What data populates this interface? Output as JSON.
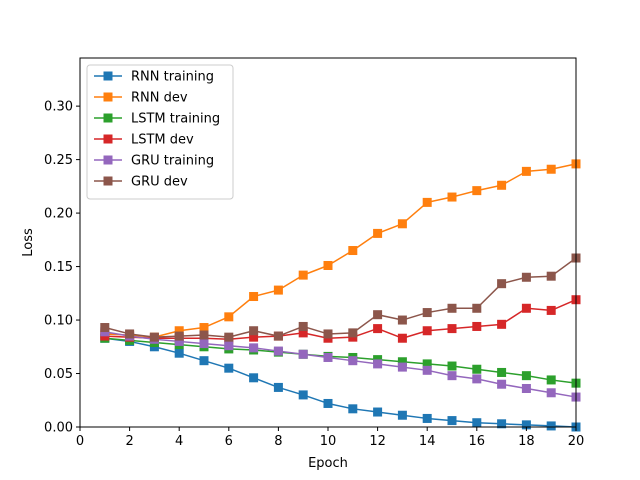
{
  "chart_data": {
    "type": "line",
    "title": "",
    "xlabel": "Epoch",
    "ylabel": "Loss",
    "xlim": [
      0,
      20
    ],
    "ylim": [
      0,
      0.345
    ],
    "xticks": [
      0,
      2,
      4,
      6,
      8,
      10,
      12,
      14,
      16,
      18,
      20
    ],
    "xtick_labels": [
      "0",
      "2",
      "4",
      "6",
      "8",
      "10",
      "12",
      "14",
      "16",
      "18",
      "20"
    ],
    "yticks": [
      0,
      0.05,
      0.1,
      0.15,
      0.2,
      0.25,
      0.3
    ],
    "ytick_labels": [
      "0.00",
      "0.05",
      "0.10",
      "0.15",
      "0.20",
      "0.25",
      "0.30"
    ],
    "grid": false,
    "legend_position": "top-left",
    "marker": "square",
    "x": [
      1,
      2,
      3,
      4,
      5,
      6,
      7,
      8,
      9,
      10,
      11,
      12,
      13,
      14,
      15,
      16,
      17,
      18,
      19,
      20
    ],
    "series": [
      {
        "name": "RNN training",
        "color": "#1f77b4",
        "values": [
          0.083,
          0.08,
          0.075,
          0.069,
          0.062,
          0.055,
          0.046,
          0.037,
          0.03,
          0.022,
          0.017,
          0.014,
          0.011,
          0.008,
          0.006,
          0.004,
          0.003,
          0.002,
          0.001,
          0.0
        ]
      },
      {
        "name": "RNN dev",
        "color": "#ff7f0e",
        "values": [
          0.087,
          0.086,
          0.084,
          0.09,
          0.093,
          0.103,
          0.122,
          0.128,
          0.142,
          0.151,
          0.165,
          0.181,
          0.19,
          0.21,
          0.215,
          0.221,
          0.226,
          0.239,
          0.241,
          0.246
        ]
      },
      {
        "name": "LSTM training",
        "color": "#2ca02c",
        "values": [
          0.083,
          0.081,
          0.079,
          0.077,
          0.075,
          0.073,
          0.072,
          0.07,
          0.068,
          0.066,
          0.065,
          0.063,
          0.061,
          0.059,
          0.057,
          0.054,
          0.051,
          0.048,
          0.044,
          0.041
        ]
      },
      {
        "name": "LSTM dev",
        "color": "#d62728",
        "values": [
          0.085,
          0.084,
          0.083,
          0.083,
          0.083,
          0.082,
          0.084,
          0.085,
          0.088,
          0.083,
          0.084,
          0.092,
          0.083,
          0.09,
          0.092,
          0.094,
          0.096,
          0.111,
          0.109,
          0.119
        ]
      },
      {
        "name": "GRU training",
        "color": "#9467bd",
        "values": [
          0.089,
          0.085,
          0.082,
          0.08,
          0.078,
          0.076,
          0.074,
          0.071,
          0.068,
          0.065,
          0.062,
          0.059,
          0.056,
          0.053,
          0.048,
          0.045,
          0.04,
          0.036,
          0.032,
          0.028
        ]
      },
      {
        "name": "GRU dev",
        "color": "#8c564b",
        "values": [
          0.093,
          0.087,
          0.084,
          0.085,
          0.086,
          0.084,
          0.09,
          0.085,
          0.094,
          0.087,
          0.088,
          0.105,
          0.1,
          0.107,
          0.111,
          0.111,
          0.134,
          0.14,
          0.141,
          0.158
        ]
      }
    ]
  }
}
